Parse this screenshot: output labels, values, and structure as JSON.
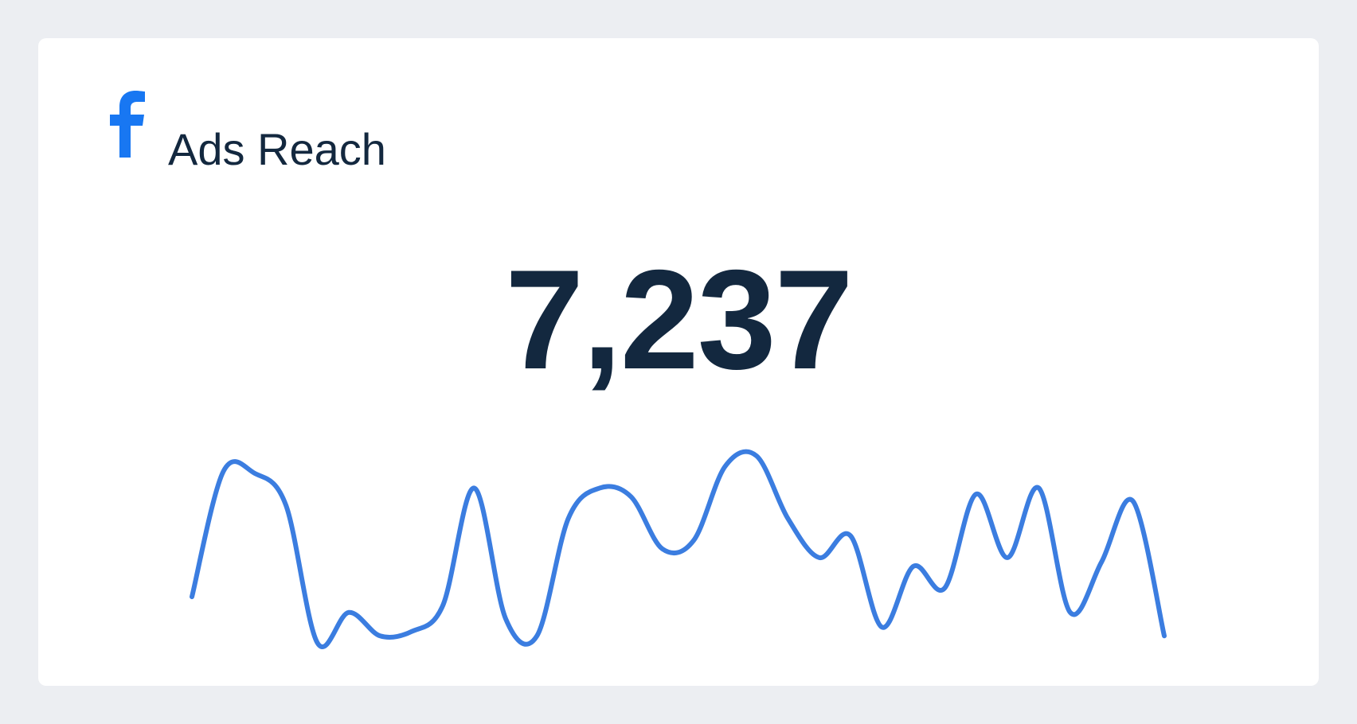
{
  "header": {
    "title": "Ads Reach"
  },
  "metric": {
    "value": "7,237"
  },
  "chart_data": {
    "type": "line",
    "color": "#3b7de0",
    "values": [
      53,
      197,
      195,
      158,
      0,
      35,
      8,
      13,
      43,
      178,
      28,
      8,
      143,
      178,
      168,
      108,
      118,
      203,
      215,
      143,
      98,
      123,
      18,
      88,
      63,
      171,
      98,
      178,
      35,
      93,
      163,
      8
    ]
  }
}
